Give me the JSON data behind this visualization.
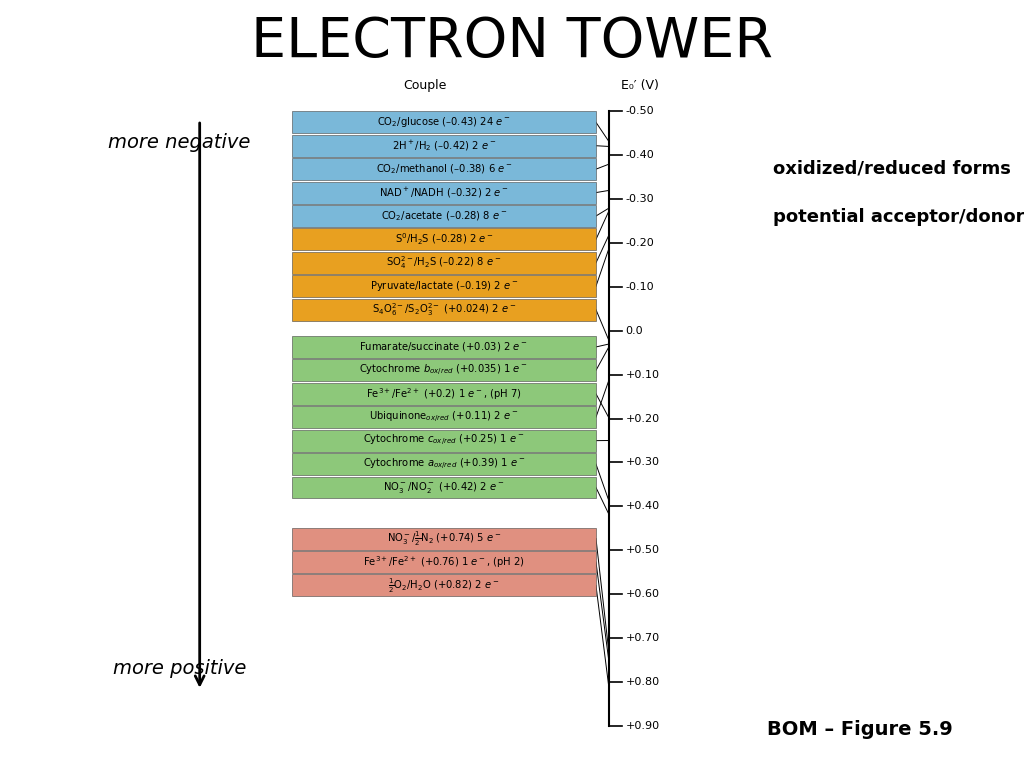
{
  "title": "ELECTRON TOWER",
  "title_fontsize": 40,
  "background_color": "#ffffff",
  "couple_header": "Couple",
  "eo_header": "E₀′ (V)",
  "left_label_top": "more negative",
  "left_label_bottom": "more positive",
  "bottom_right_label": "BOM – Figure 5.9",
  "right_label_line1": "oxidized/reduced forms",
  "right_label_line2": "potential acceptor/donor",
  "axis_ticks": [
    -0.5,
    -0.4,
    -0.3,
    -0.2,
    -0.1,
    0.0,
    0.1,
    0.2,
    0.3,
    0.4,
    0.5,
    0.6,
    0.7,
    0.8,
    0.9
  ],
  "axis_tick_labels": [
    "-0.50",
    "-0.40",
    "-0.30",
    "-0.20",
    "-0.10",
    "0.0",
    "+0.10",
    "+0.20",
    "+0.30",
    "+0.40",
    "+0.50",
    "+0.60",
    "+0.70",
    "+0.80",
    "+0.90"
  ],
  "entries": [
    {
      "label": "CO$_2$/glucose (–0.43) 24 $e^-$",
      "value": -0.43,
      "color": "#7ab8d9"
    },
    {
      "label": "2H$^+$/H$_2$ (–0.42) 2 $e^-$",
      "value": -0.42,
      "color": "#7ab8d9"
    },
    {
      "label": "CO$_2$/methanol (–0.38) 6 $e^-$",
      "value": -0.38,
      "color": "#7ab8d9"
    },
    {
      "label": "NAD$^+$/NADH (–0.32) 2 $e^-$",
      "value": -0.32,
      "color": "#7ab8d9"
    },
    {
      "label": "CO$_2$/acetate (–0.28) 8 $e^-$",
      "value": -0.28,
      "color": "#7ab8d9"
    },
    {
      "label": "S$^0$/H$_2$S (–0.28) 2 $e^-$",
      "value": -0.275,
      "color": "#e8a020"
    },
    {
      "label": "SO$_4^{2-}$/H$_2$S (–0.22) 8 $e^-$",
      "value": -0.22,
      "color": "#e8a020"
    },
    {
      "label": "Pyruvate/lactate (–0.19) 2 $e^-$",
      "value": -0.19,
      "color": "#e8a020"
    },
    {
      "label": "S$_4$O$_6^{2-}$/S$_2$O$_3^{2-}$ (+0.024) 2 $e^-$",
      "value": 0.024,
      "color": "#e8a020"
    },
    {
      "label": "Fumarate/succinate (+0.03) 2 $e^-$",
      "value": 0.03,
      "color": "#8dc87a"
    },
    {
      "label": "Cytochrome $b_{ox/red}$ (+0.035) 1 $e^-$",
      "value": 0.035,
      "color": "#8dc87a"
    },
    {
      "label": "Fe$^{3+}$/Fe$^{2+}$ (+0.2) 1 $e^-$, (pH 7)",
      "value": 0.2,
      "color": "#8dc87a"
    },
    {
      "label": "Ubiquinone$_{ox/red}$ (+0.11) 2 $e^-$",
      "value": 0.11,
      "color": "#8dc87a"
    },
    {
      "label": "Cytochrome $c_{ox/red}$ (+0.25) 1 $e^-$",
      "value": 0.25,
      "color": "#8dc87a"
    },
    {
      "label": "Cytochrome $a_{ox/red}$ (+0.39) 1 $e^-$",
      "value": 0.39,
      "color": "#8dc87a"
    },
    {
      "label": "NO$_3^-$/NO$_2^-$ (+0.42) 2 $e^-$",
      "value": 0.42,
      "color": "#8dc87a"
    },
    {
      "label": "NO$_3^-$/$\\frac{1}{2}$N$_2$ (+0.74) 5 $e^-$",
      "value": 0.74,
      "color": "#e09080"
    },
    {
      "label": "Fe$^{3+}$/Fe$^{2+}$ (+0.76) 1 $e^-$, (pH 2)",
      "value": 0.76,
      "color": "#e09080"
    },
    {
      "label": "$\\frac{1}{2}$O$_2$/H$_2$O (+0.82) 2 $e^-$",
      "value": 0.82,
      "color": "#e09080"
    }
  ],
  "group_gaps": [
    0,
    0,
    0,
    0,
    0,
    0,
    0,
    0,
    0,
    1,
    0,
    0,
    0,
    0,
    0,
    0,
    2,
    0,
    0
  ],
  "scale_min": -0.5,
  "scale_max": 0.9
}
